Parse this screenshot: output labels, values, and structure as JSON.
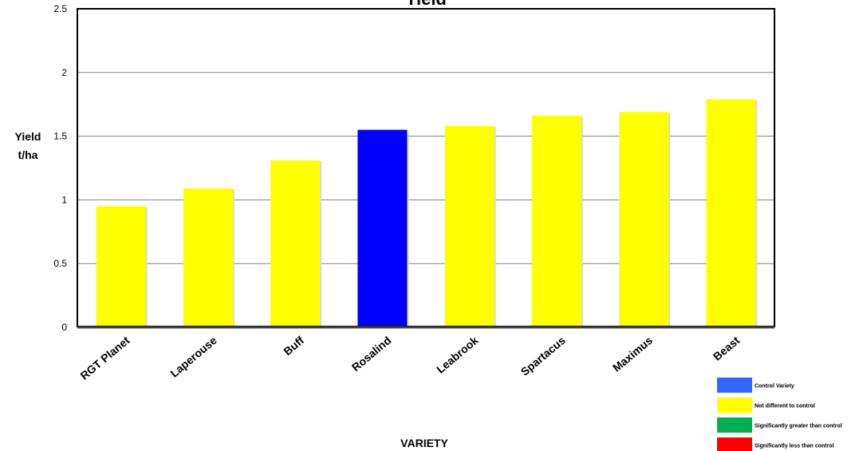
{
  "chart_data": {
    "type": "bar",
    "title": "Yield",
    "xlabel": "VARIETY",
    "ylabel_line1": "Yield",
    "ylabel_line2": "t/ha",
    "ylim": [
      0,
      2.5
    ],
    "yticks": [
      "0",
      "0.5",
      "1",
      "1.5",
      "2",
      "2.5"
    ],
    "grid": true,
    "legend_position": "bottom-right",
    "categories": [
      "RGT Planet",
      "Laperouse",
      "Buff",
      "Rosalind",
      "Leabrook",
      "Spartacus",
      "Maximus",
      "Beast"
    ],
    "values": [
      0.95,
      1.09,
      1.31,
      1.55,
      1.58,
      1.66,
      1.69,
      1.79
    ],
    "bar_status": [
      "not_different",
      "not_different",
      "not_different",
      "control",
      "not_different",
      "not_different",
      "not_different",
      "not_different"
    ],
    "status_colors": {
      "control": "#0000ff",
      "not_different": "#ffff00",
      "greater": "#00b050",
      "less": "#ff0000"
    },
    "legend": [
      {
        "label": "Control Variety",
        "color": "#3366ff"
      },
      {
        "label": "Not different to control",
        "color": "#ffff00"
      },
      {
        "label": "Significantly greater than control",
        "color": "#00b050"
      },
      {
        "label": "Significantly less than control",
        "color": "#ff0000"
      }
    ]
  }
}
